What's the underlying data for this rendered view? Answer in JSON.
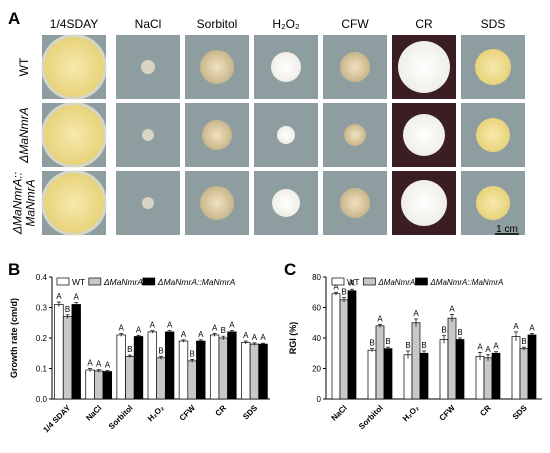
{
  "panel_a": {
    "letter": "A",
    "conditions": [
      "1/4SDAY",
      "NaCl",
      "Sorbitol",
      "H₂O₂",
      "CFW",
      "CR",
      "SDS"
    ],
    "strains": [
      "WT",
      "ΔMaNmrA",
      "ΔMaNmrA::",
      "MaNmrA"
    ],
    "scale_label": "1 cm",
    "colors": {
      "plate_default": "#8e9ea0",
      "plate_cr": "#3b1d24",
      "colony_yellow": "#e8d37a",
      "colony_white": "#efeee6"
    }
  },
  "panel_b": {
    "letter": "B"
  },
  "panel_c": {
    "letter": "C"
  },
  "legend": {
    "wt": "WT",
    "mutant": "ΔMaNmrA",
    "complement": "ΔMaNmrA::MaNmrA"
  },
  "series_colors": {
    "wt": "#ffffff",
    "mutant": "#c8c8c8",
    "complement": "#000000"
  },
  "chart_data": [
    {
      "type": "bar",
      "ylabel": "Growth rate (cm/d)",
      "ylim": [
        0,
        0.4
      ],
      "yticks": [
        "0.0",
        "0.1",
        "0.2",
        "0.3",
        "0.4"
      ],
      "categories": [
        "1/4 SDAY",
        "NaCl",
        "Sorbitol",
        "H₂O₂",
        "CFW",
        "CR",
        "SDS"
      ],
      "series": [
        {
          "name": "WT",
          "values": [
            0.31,
            0.095,
            0.21,
            0.22,
            0.19,
            0.21,
            0.185
          ],
          "errors": [
            0.008,
            0.005,
            0.005,
            0.004,
            0.004,
            0.005,
            0.005
          ],
          "letters": [
            "A",
            "A",
            "A",
            "A",
            "A",
            "A",
            "A"
          ]
        },
        {
          "name": "ΔMaNmrA",
          "values": [
            0.27,
            0.092,
            0.14,
            0.135,
            0.125,
            0.2,
            0.18
          ],
          "errors": [
            0.006,
            0.004,
            0.004,
            0.005,
            0.005,
            0.006,
            0.004
          ],
          "letters": [
            "B",
            "A",
            "B",
            "B",
            "B",
            "B",
            "A"
          ]
        },
        {
          "name": "ΔMaNmrA::MaNmrA",
          "values": [
            0.31,
            0.09,
            0.205,
            0.22,
            0.19,
            0.22,
            0.18
          ],
          "errors": [
            0.006,
            0.003,
            0.004,
            0.004,
            0.004,
            0.004,
            0.003
          ],
          "letters": [
            "A",
            "A",
            "A",
            "A",
            "A",
            "A",
            "A"
          ]
        }
      ]
    },
    {
      "type": "bar",
      "ylabel": "RGI (%)",
      "ylim": [
        0,
        80
      ],
      "yticks": [
        "0",
        "20",
        "40",
        "60",
        "80"
      ],
      "categories": [
        "NaCl",
        "Sorbitol",
        "H₂O₂",
        "CFW",
        "CR",
        "SDS"
      ],
      "series": [
        {
          "name": "WT",
          "values": [
            69,
            32,
            29,
            39,
            28,
            41
          ],
          "errors": [
            1,
            1,
            2.5,
            2.5,
            2.5,
            3
          ],
          "letters": [
            "A",
            "B",
            "B",
            "B",
            "A",
            "A"
          ]
        },
        {
          "name": "ΔMaNmrA",
          "values": [
            65,
            48,
            50,
            53,
            27,
            33
          ],
          "errors": [
            1.5,
            1,
            2.5,
            2.5,
            2,
            1
          ],
          "letters": [
            "B",
            "A",
            "A",
            "A",
            "A",
            "B"
          ]
        },
        {
          "name": "ΔMaNmrA::MaNmrA",
          "values": [
            71,
            33,
            30,
            39,
            30,
            42
          ],
          "errors": [
            1,
            1,
            1.5,
            1,
            1,
            1
          ],
          "letters": [
            "A",
            "B",
            "B",
            "B",
            "A",
            "A"
          ]
        }
      ]
    }
  ]
}
